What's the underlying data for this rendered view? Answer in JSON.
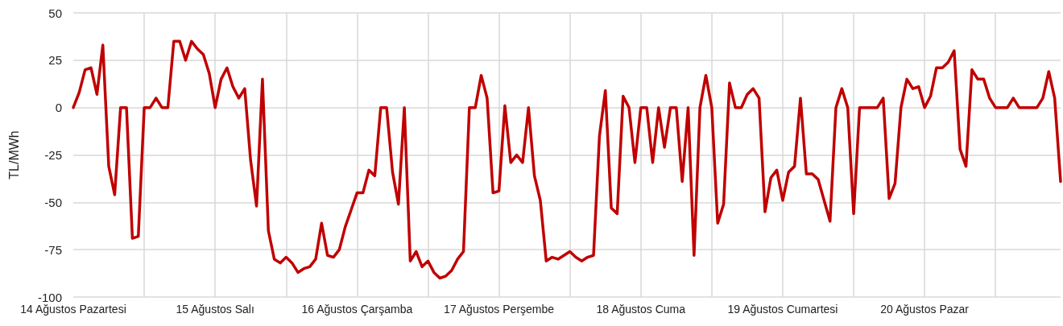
{
  "chart_data": {
    "type": "line",
    "ylabel": "TL/MWh",
    "categories": [
      "14 Ağustos Pazartesi",
      null,
      null,
      null,
      null,
      null,
      null,
      null,
      null,
      null,
      null,
      null,
      null,
      null,
      null,
      null,
      null,
      null,
      null,
      null,
      null,
      null,
      null,
      null,
      "15 Ağustos Salı",
      null,
      null,
      null,
      null,
      null,
      null,
      null,
      null,
      null,
      null,
      null,
      null,
      null,
      null,
      null,
      null,
      null,
      null,
      null,
      null,
      null,
      null,
      null,
      "16 Ağustos Çarşamba",
      null,
      null,
      null,
      null,
      null,
      null,
      null,
      null,
      null,
      null,
      null,
      null,
      null,
      null,
      null,
      null,
      null,
      null,
      null,
      null,
      null,
      null,
      null,
      "17 Ağustos Perşembe",
      null,
      null,
      null,
      null,
      null,
      null,
      null,
      null,
      null,
      null,
      null,
      null,
      null,
      null,
      null,
      null,
      null,
      null,
      null,
      null,
      null,
      null,
      null,
      "18 Ağustos Cuma",
      null,
      null,
      null,
      null,
      null,
      null,
      null,
      null,
      null,
      null,
      null,
      null,
      null,
      null,
      null,
      null,
      null,
      null,
      null,
      null,
      null,
      null,
      null,
      "19 Ağustos Cumartesi",
      null,
      null,
      null,
      null,
      null,
      null,
      null,
      null,
      null,
      null,
      null,
      null,
      null,
      null,
      null,
      null,
      null,
      null,
      null,
      null,
      null,
      null,
      null,
      "20 Ağustos Pazar",
      null,
      null,
      null,
      null,
      null,
      null,
      null,
      null,
      null,
      null,
      null,
      null,
      null,
      null,
      null,
      null,
      null,
      null,
      null,
      null,
      null,
      null,
      null
    ],
    "series": [
      {
        "color": "#c00000",
        "values": [
          0,
          8,
          20,
          21,
          7,
          33,
          -31,
          -46,
          0,
          0,
          -69,
          -68,
          0,
          0,
          5,
          0,
          0,
          35,
          35,
          25,
          35,
          31,
          28,
          18,
          0,
          15,
          21,
          11,
          5,
          10,
          -28,
          -52,
          15,
          -65,
          -80,
          -82,
          -79,
          -82,
          -87,
          -85,
          -84,
          -80,
          -61,
          -78,
          -79,
          -75,
          -63,
          -54,
          -45,
          -45,
          -33,
          -36,
          0,
          0,
          -34,
          -51,
          0,
          -81,
          -76,
          -84,
          -81,
          -87,
          -90,
          -89,
          -86,
          -80,
          -76,
          0,
          0,
          17,
          5,
          -45,
          -44,
          1,
          -29,
          -25,
          -29,
          0,
          -36,
          -49,
          -81,
          -79,
          -80,
          -78,
          -76,
          -79,
          -81,
          -79,
          -78,
          -15,
          9,
          -53,
          -56,
          6,
          0,
          -29,
          0,
          0,
          -29,
          0,
          -21,
          0,
          0,
          -39,
          0,
          -78,
          0,
          17,
          0,
          -61,
          -51,
          13,
          0,
          0,
          7,
          10,
          5,
          -55,
          -37,
          -33,
          -49,
          -34,
          -31,
          5,
          -35,
          -35,
          -38,
          -49,
          -60,
          0,
          10,
          0,
          -56,
          0,
          0,
          0,
          0,
          5,
          -48,
          -40,
          0,
          15,
          10,
          11,
          0,
          6,
          21,
          21,
          24,
          30,
          -22,
          -31,
          20,
          15,
          15,
          5,
          0,
          0,
          0,
          5,
          0,
          0,
          0,
          0,
          5,
          19,
          5,
          -39
        ]
      }
    ],
    "ylim": [
      -100,
      50
    ],
    "yticks": [
      -100,
      -75,
      -50,
      -25,
      0,
      25,
      50
    ],
    "grid": true,
    "marker": "none",
    "line_style": "solid"
  }
}
